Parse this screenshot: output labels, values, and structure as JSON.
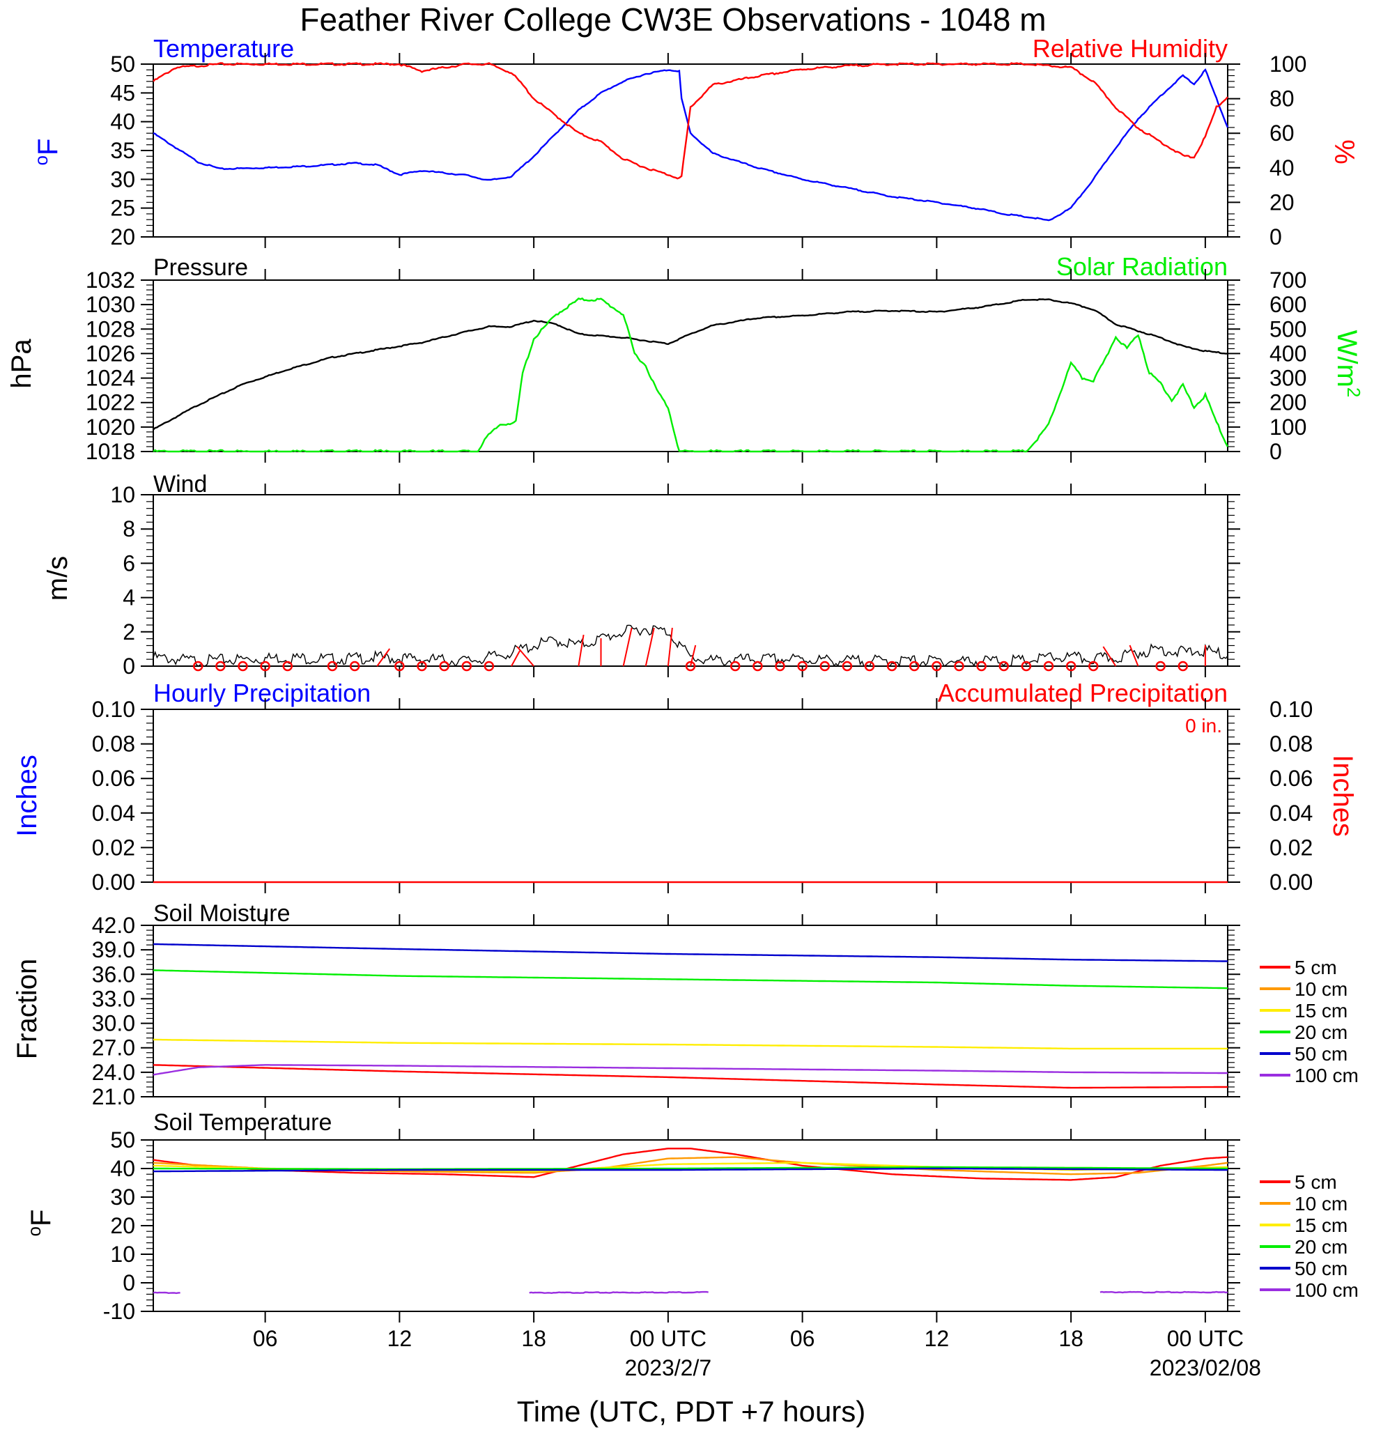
{
  "title": "Feather River College CW3E Observations - 1048 m",
  "xaxis": {
    "title": "Time (UTC, PDT +7 hours)",
    "ticks": [
      {
        "h": 6,
        "label": "06"
      },
      {
        "h": 12,
        "label": "12"
      },
      {
        "h": 18,
        "label": "18"
      },
      {
        "h": 24,
        "label": "00 UTC",
        "date": "2023/2/7"
      },
      {
        "h": 30,
        "label": "06"
      },
      {
        "h": 36,
        "label": "12"
      },
      {
        "h": 42,
        "label": "18"
      },
      {
        "h": 48,
        "label": "00 UTC",
        "date": "2023/02/08"
      }
    ],
    "range_hours": [
      1,
      49
    ]
  },
  "colors": {
    "blue": "#0000ff",
    "red": "#ff0000",
    "green": "#00ee00",
    "black": "#000000",
    "orange": "#ff9900",
    "yellow": "#ffee00",
    "purple": "#9a2ee0",
    "darkblue": "#0000cc"
  },
  "chart_data": [
    {
      "type": "line",
      "id": "temp_rh",
      "title_left": "Temperature",
      "title_right": "Relative Humidity",
      "ylabel_left": "oF",
      "ylabel_right": "%",
      "ylim_left": [
        20,
        50
      ],
      "ylim_right": [
        0,
        100
      ],
      "yticks_left": [
        "20",
        "25",
        "30",
        "35",
        "40",
        "45",
        "50"
      ],
      "yticks_right": [
        "0",
        "20",
        "40",
        "60",
        "80",
        "100"
      ],
      "series": [
        {
          "name": "Temperature",
          "axis": "left",
          "color": "blue",
          "x": [
            1,
            2,
            3,
            4,
            6,
            8,
            10,
            11,
            12,
            13,
            15,
            16,
            17,
            18,
            19,
            20,
            21,
            22,
            23,
            24,
            24.5,
            24.6,
            25,
            26,
            28,
            30,
            32,
            34,
            36,
            38,
            39,
            40.5,
            41,
            42,
            43,
            44,
            45,
            46,
            47,
            47.5,
            48,
            48.5,
            49
          ],
          "y": [
            38,
            35.5,
            33,
            31.8,
            32,
            32.3,
            32.8,
            32.5,
            30.8,
            31.5,
            30.7,
            29.8,
            30.5,
            34,
            38,
            42,
            45,
            47,
            48.3,
            49,
            48.8,
            44,
            38,
            34.5,
            32,
            30,
            28.5,
            27,
            26,
            24.8,
            24,
            23.2,
            22.8,
            25,
            30,
            35.5,
            40.5,
            44.5,
            48,
            46.5,
            49,
            44,
            39
          ]
        },
        {
          "name": "Relative Humidity",
          "axis": "right",
          "color": "red",
          "x": [
            1,
            2,
            4,
            6,
            8,
            10,
            12,
            13,
            15,
            16,
            17,
            17.5,
            18,
            19,
            20,
            21,
            22,
            23,
            24,
            24.5,
            24.6,
            25,
            26,
            28,
            30,
            32,
            34,
            36,
            38,
            40,
            41,
            42,
            43,
            44,
            45,
            46,
            47,
            47.5,
            48,
            48.5,
            49
          ],
          "y": [
            90,
            98,
            100,
            100,
            100,
            100,
            100,
            96,
            100,
            100,
            95,
            88,
            80,
            70,
            60,
            55,
            45,
            40,
            36,
            34,
            35,
            75,
            88,
            93,
            97,
            99,
            100,
            100,
            100,
            100,
            99,
            98,
            90,
            75,
            63,
            55,
            47,
            46,
            58,
            75,
            81
          ]
        }
      ]
    },
    {
      "type": "line",
      "id": "pressure_solar",
      "title_left": "Pressure",
      "title_right": "Solar Radiation",
      "ylabel_left": "hPa",
      "ylabel_right": "W/m2",
      "ylim_left": [
        1018,
        1032
      ],
      "ylim_right": [
        0,
        700
      ],
      "yticks_left": [
        "1018",
        "1020",
        "1022",
        "1024",
        "1026",
        "1028",
        "1030",
        "1032"
      ],
      "yticks_right": [
        "0",
        "100",
        "200",
        "300",
        "400",
        "500",
        "600",
        "700"
      ],
      "series": [
        {
          "name": "Pressure",
          "axis": "left",
          "color": "black",
          "x": [
            1,
            3,
            5,
            7,
            9,
            11,
            13,
            15,
            16,
            17,
            18,
            19,
            20,
            22,
            24,
            25,
            26,
            28,
            30,
            32,
            34,
            36,
            38,
            40,
            41,
            42,
            43,
            44,
            46,
            47,
            48,
            49
          ],
          "y": [
            1019.8,
            1021.8,
            1023.5,
            1024.7,
            1025.7,
            1026.3,
            1026.9,
            1027.8,
            1028.2,
            1028.2,
            1028.7,
            1028.4,
            1027.6,
            1027.3,
            1026.8,
            1027.6,
            1028.3,
            1028.9,
            1029.1,
            1029.4,
            1029.5,
            1029.4,
            1029.8,
            1030.4,
            1030.4,
            1030.1,
            1029.6,
            1028.4,
            1027.3,
            1026.6,
            1026.2,
            1026
          ]
        },
        {
          "name": "Solar Radiation",
          "axis": "right",
          "color": "green",
          "x": [
            1,
            15.5,
            15.8,
            16.5,
            17.2,
            17.5,
            18,
            19,
            20,
            21,
            22,
            22.5,
            23,
            23.5,
            24,
            24.5,
            25,
            26,
            40,
            40.5,
            41,
            42,
            42.5,
            43,
            43.5,
            44,
            44.5,
            45,
            45.5,
            46,
            46.5,
            47,
            47.5,
            48,
            48.5,
            49
          ],
          "y": [
            0,
            0,
            50,
            110,
            120,
            320,
            460,
            560,
            620,
            620,
            560,
            400,
            350,
            250,
            180,
            0,
            0,
            0,
            0,
            50,
            110,
            360,
            300,
            290,
            370,
            470,
            420,
            480,
            320,
            280,
            210,
            270,
            180,
            230,
            120,
            20
          ]
        }
      ]
    },
    {
      "type": "line",
      "id": "wind",
      "title_left": "Wind",
      "ylabel_left": "m/s",
      "ylim_left": [
        0,
        10
      ],
      "yticks_left": [
        "0",
        "2",
        "4",
        "6",
        "8",
        "10"
      ],
      "series": [
        {
          "name": "Wind speed",
          "axis": "left",
          "color": "black",
          "x": [
            1,
            3,
            5,
            7,
            9,
            11,
            13,
            15,
            16,
            17,
            18,
            19,
            20,
            21,
            22,
            23,
            24,
            24.5,
            25,
            26,
            28,
            30,
            32,
            34,
            36,
            38,
            40,
            41,
            42,
            43,
            44,
            45,
            46,
            47,
            48,
            49
          ],
          "y": [
            0.5,
            0.3,
            0.4,
            0.5,
            0.4,
            0.5,
            0.4,
            0.3,
            0.5,
            0.8,
            1.2,
            1.5,
            1.2,
            1.6,
            2,
            2.2,
            2,
            1.3,
            0.5,
            0.3,
            0.4,
            0.4,
            0.3,
            0.3,
            0.3,
            0.3,
            0.3,
            0.5,
            0.5,
            0.4,
            0.5,
            0.8,
            1,
            0.8,
            0.9,
            0.6
          ]
        }
      ],
      "barbs_hours": [
        3,
        4,
        5,
        6,
        7,
        9,
        10,
        11,
        12,
        13,
        14,
        15,
        16,
        17,
        18,
        19,
        20,
        21,
        22,
        23,
        24,
        25,
        26,
        27,
        28,
        29,
        30,
        31,
        32,
        33,
        34,
        35,
        36,
        37,
        38,
        39,
        40,
        41,
        42,
        43,
        44,
        45,
        46,
        47,
        48
      ],
      "calm_circles_hours": [
        3,
        4,
        5,
        6,
        7,
        9,
        10,
        12,
        13,
        14,
        15,
        16,
        25,
        27,
        28,
        29,
        30,
        31,
        32,
        33,
        34,
        35,
        36,
        37,
        38,
        39,
        40,
        41,
        42,
        43,
        46,
        47
      ]
    },
    {
      "type": "line",
      "id": "precip",
      "title_left": "Hourly Precipitation",
      "title_right": "Accumulated Precipitation",
      "annotation": "0 in.",
      "ylabel_left": "Inches",
      "ylabel_right": "Inches",
      "ylim_left": [
        0,
        0.1
      ],
      "ylim_right": [
        0,
        0.1
      ],
      "yticks_left": [
        "0.00",
        "0.02",
        "0.04",
        "0.06",
        "0.08",
        "0.10"
      ],
      "yticks_right": [
        "0.00",
        "0.02",
        "0.04",
        "0.06",
        "0.08",
        "0.10"
      ],
      "series": [
        {
          "name": "Accumulated Precipitation",
          "axis": "left",
          "color": "red",
          "x": [
            1,
            49
          ],
          "y": [
            0,
            0
          ]
        }
      ]
    },
    {
      "type": "line",
      "id": "soil_moisture",
      "title_left": "Soil Moisture",
      "ylabel_left": "Fraction",
      "ylim_left": [
        21,
        42
      ],
      "yticks_left": [
        "21.0",
        "24.0",
        "27.0",
        "30.0",
        "33.0",
        "36.0",
        "39.0",
        "42.0"
      ],
      "legend": [
        "5 cm",
        "10 cm",
        "15 cm",
        "20 cm",
        "50 cm",
        "100 cm"
      ],
      "legend_colors": [
        "red",
        "orange",
        "yellow",
        "green",
        "darkblue",
        "purple"
      ],
      "series": [
        {
          "name": "5 cm",
          "color": "red",
          "x": [
            1,
            12,
            24,
            36,
            42,
            49
          ],
          "y": [
            24.9,
            24.1,
            23.4,
            22.5,
            22.1,
            22.2
          ]
        },
        {
          "name": "15 cm",
          "color": "yellow",
          "x": [
            1,
            12,
            24,
            36,
            42,
            49
          ],
          "y": [
            28,
            27.6,
            27.4,
            27.1,
            26.9,
            26.9
          ]
        },
        {
          "name": "20 cm",
          "color": "green",
          "x": [
            1,
            12,
            24,
            36,
            42,
            49
          ],
          "y": [
            36.5,
            35.8,
            35.4,
            35,
            34.6,
            34.3
          ]
        },
        {
          "name": "50 cm",
          "color": "darkblue",
          "x": [
            1,
            12,
            24,
            36,
            42,
            49
          ],
          "y": [
            39.7,
            39.1,
            38.5,
            38.1,
            37.8,
            37.6
          ]
        },
        {
          "name": "100 cm",
          "color": "purple",
          "x": [
            1,
            3,
            6,
            12,
            24,
            36,
            42,
            49
          ],
          "y": [
            23.7,
            24.6,
            24.9,
            24.8,
            24.5,
            24.2,
            24,
            23.9
          ]
        }
      ]
    },
    {
      "type": "line",
      "id": "soil_temp",
      "title_left": "Soil Temperature",
      "ylabel_left": "oF",
      "ylim_left": [
        -10,
        50
      ],
      "yticks_left": [
        "-10",
        "0",
        "10",
        "20",
        "30",
        "40",
        "50"
      ],
      "legend": [
        "5 cm",
        "10 cm",
        "15 cm",
        "20 cm",
        "50 cm",
        "100 cm"
      ],
      "legend_colors": [
        "red",
        "orange",
        "yellow",
        "green",
        "darkblue",
        "purple"
      ],
      "series": [
        {
          "name": "5 cm",
          "color": "red",
          "x": [
            1,
            3,
            6,
            10,
            14,
            18,
            20,
            22,
            24,
            25,
            27,
            30,
            34,
            38,
            42,
            44,
            46,
            48,
            49
          ],
          "y": [
            43,
            41,
            39.5,
            38.5,
            38,
            37,
            41,
            45,
            47,
            47,
            45,
            41,
            38,
            36.5,
            36,
            37,
            41,
            43.5,
            44
          ]
        },
        {
          "name": "10 cm",
          "color": "orange",
          "x": [
            1,
            6,
            12,
            18,
            21,
            24,
            27,
            30,
            36,
            42,
            45,
            48,
            49
          ],
          "y": [
            42,
            40,
            39,
            38.5,
            40,
            43.5,
            44,
            42,
            39.5,
            38,
            38.5,
            41,
            42
          ]
        },
        {
          "name": "15 cm",
          "color": "yellow",
          "x": [
            1,
            6,
            12,
            18,
            24,
            30,
            36,
            42,
            49
          ],
          "y": [
            41,
            40,
            39.5,
            39,
            41.5,
            42,
            40.5,
            39.5,
            40.5
          ]
        },
        {
          "name": "20 cm",
          "color": "green",
          "x": [
            1,
            12,
            24,
            36,
            49
          ],
          "y": [
            40,
            39.8,
            40,
            40.5,
            40
          ]
        },
        {
          "name": "50 cm",
          "color": "darkblue",
          "x": [
            1,
            12,
            24,
            36,
            49
          ],
          "y": [
            39,
            39.5,
            39.5,
            40,
            39.5
          ]
        },
        {
          "name": "100 cm",
          "color": "purple",
          "x": [
            1,
            2.2
          ],
          "y": [
            -3.5,
            -3.5
          ]
        },
        {
          "name": "100 cm",
          "color": "purple",
          "x": [
            17.8,
            25.8
          ],
          "y": [
            -3.5,
            -3.3
          ]
        },
        {
          "name": "100 cm",
          "color": "purple",
          "x": [
            43.3,
            49
          ],
          "y": [
            -3.3,
            -3.3
          ]
        }
      ]
    }
  ]
}
